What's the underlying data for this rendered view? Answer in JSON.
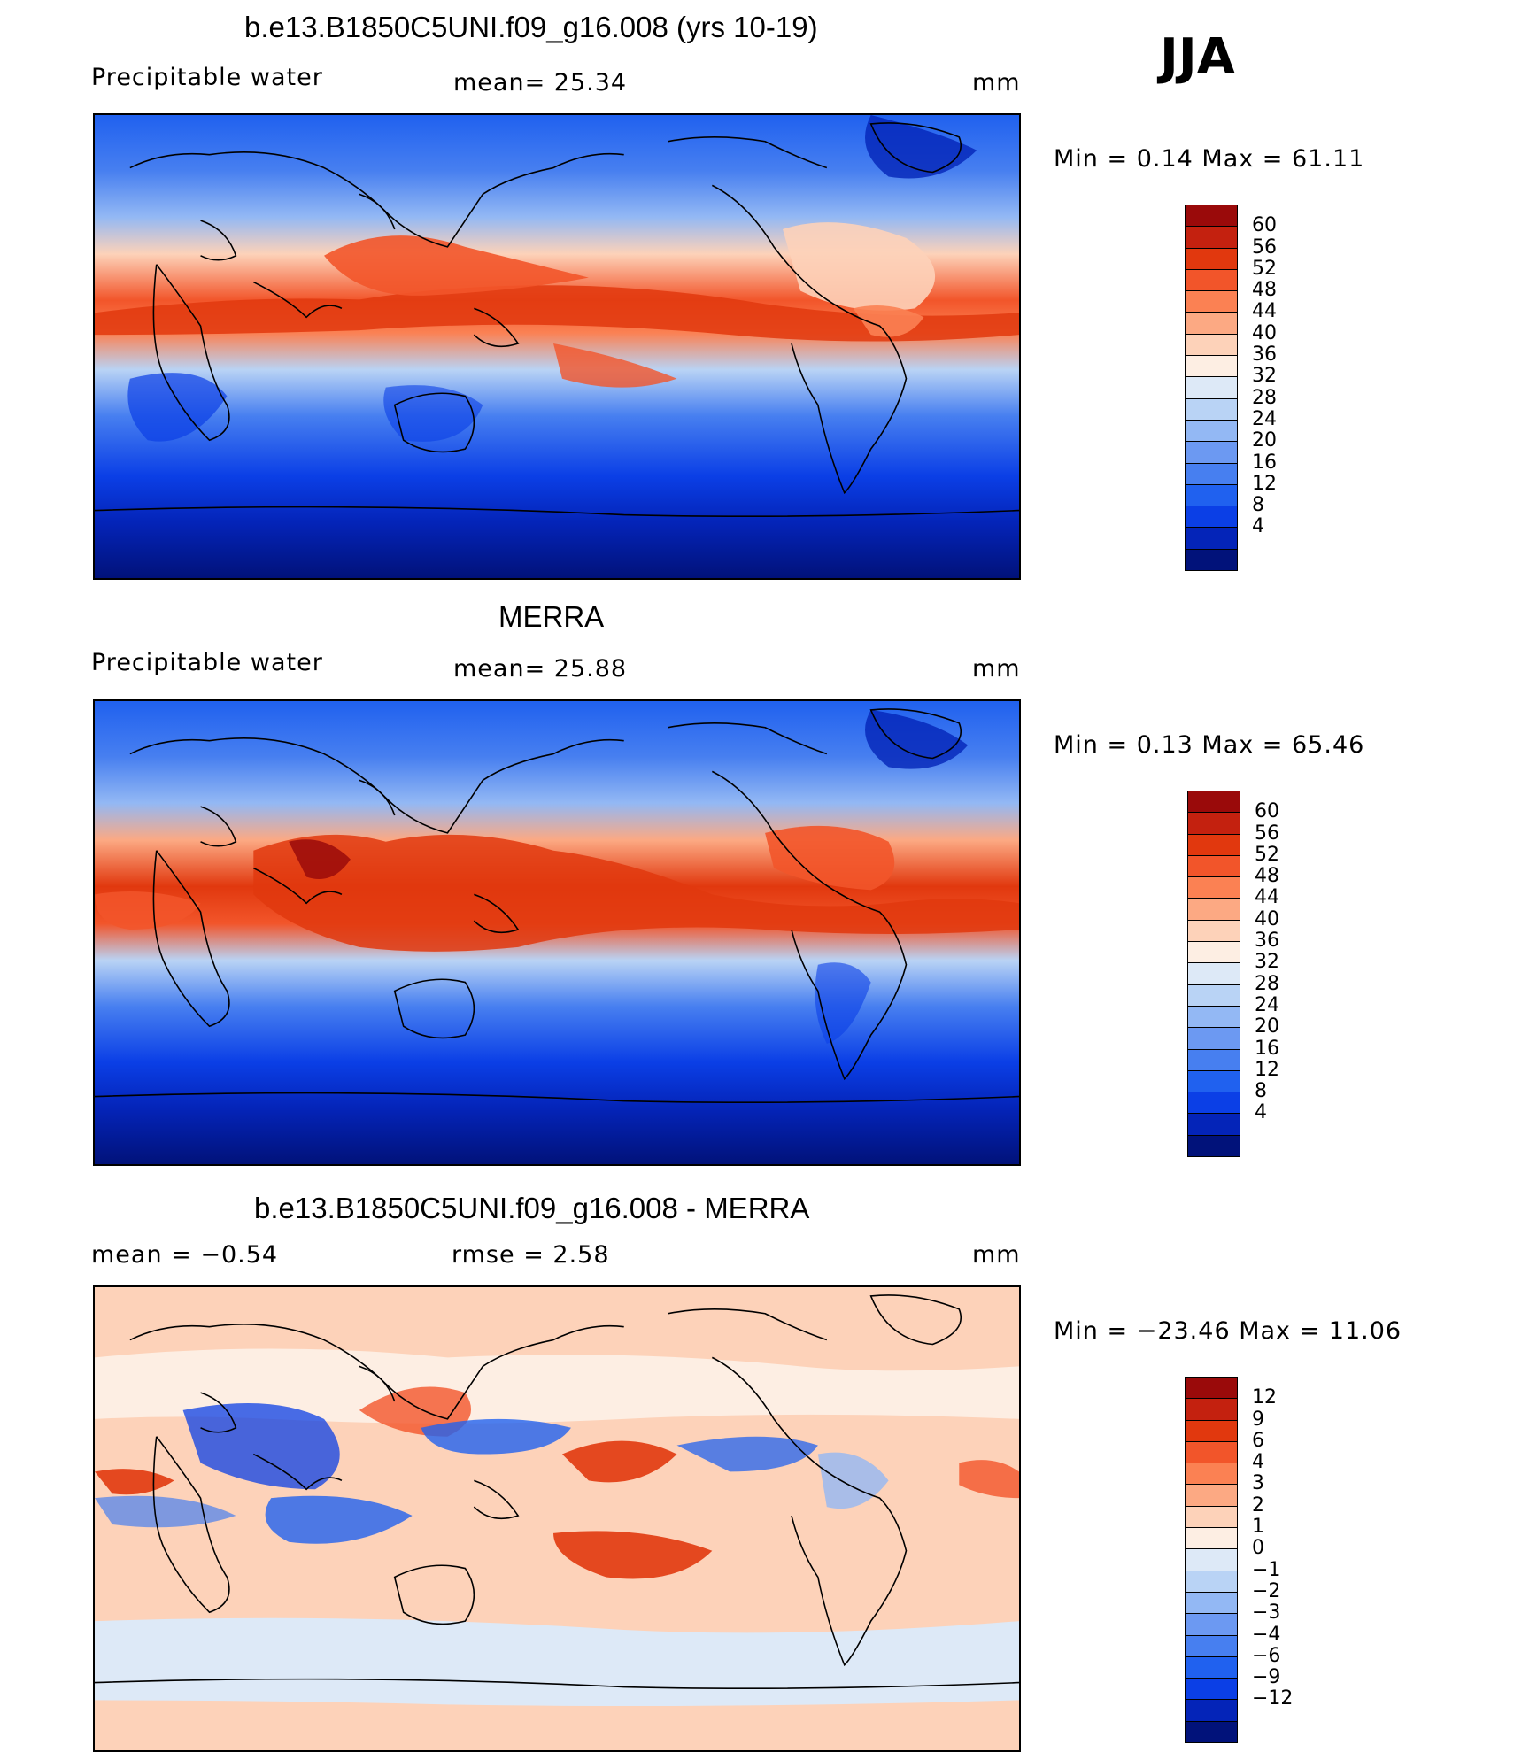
{
  "season": "JJA",
  "panels": [
    {
      "id": "model",
      "title": "b.e13.B1850C5UNI.f09_g16.008 (yrs 10-19)",
      "left_label": "Precipitable  water",
      "mid_label": "mean=   25.34",
      "units": "mm",
      "minmax": "Min  =     0.14  Max  =    61.11",
      "colorbar": {
        "colors": [
          "#9a0a0a",
          "#c4210f",
          "#e1380e",
          "#f2552a",
          "#fb8153",
          "#fca983",
          "#fdd2b9",
          "#fdeee3",
          "#dde9f7",
          "#b9d3f5",
          "#93b8f4",
          "#6c99f2",
          "#477ff0",
          "#2061ef",
          "#0b3fe6",
          "#0424b8",
          "#01127a"
        ],
        "labels": [
          "60",
          "56",
          "52",
          "48",
          "44",
          "40",
          "36",
          "32",
          "28",
          "24",
          "20",
          "16",
          "12",
          "8",
          "4"
        ]
      }
    },
    {
      "id": "obs",
      "title": "MERRA",
      "left_label": "Precipitable  water",
      "mid_label": "mean=   25.88",
      "units": "mm",
      "minmax": "Min  =     0.13  Max  =    65.46",
      "colorbar": {
        "colors": [
          "#9a0a0a",
          "#c4210f",
          "#e1380e",
          "#f2552a",
          "#fb8153",
          "#fca983",
          "#fdd2b9",
          "#fdeee3",
          "#dde9f7",
          "#b9d3f5",
          "#93b8f4",
          "#6c99f2",
          "#477ff0",
          "#2061ef",
          "#0b3fe6",
          "#0424b8",
          "#01127a"
        ],
        "labels": [
          "60",
          "56",
          "52",
          "48",
          "44",
          "40",
          "36",
          "32",
          "28",
          "24",
          "20",
          "16",
          "12",
          "8",
          "4"
        ]
      }
    },
    {
      "id": "diff",
      "title": "b.e13.B1850C5UNI.f09_g16.008 - MERRA",
      "left_label": "mean  =    −0.54",
      "mid_label": "rmse  =     2.58",
      "units": "mm",
      "minmax": "Min  = −23.46  Max  =    11.06",
      "colorbar": {
        "colors": [
          "#9a0a0a",
          "#c4210f",
          "#e1380e",
          "#f2552a",
          "#fb8153",
          "#fca983",
          "#fdd2b9",
          "#fdeee3",
          "#dde9f7",
          "#b9d3f5",
          "#93b8f4",
          "#6c99f2",
          "#477ff0",
          "#2061ef",
          "#0b3fe6",
          "#0424b8",
          "#01127a"
        ],
        "labels": [
          "12",
          "9",
          "6",
          "4",
          "3",
          "2",
          "1",
          "0",
          "−1",
          "−2",
          "−3",
          "−4",
          "−6",
          "−9",
          "−12"
        ]
      }
    }
  ]
}
